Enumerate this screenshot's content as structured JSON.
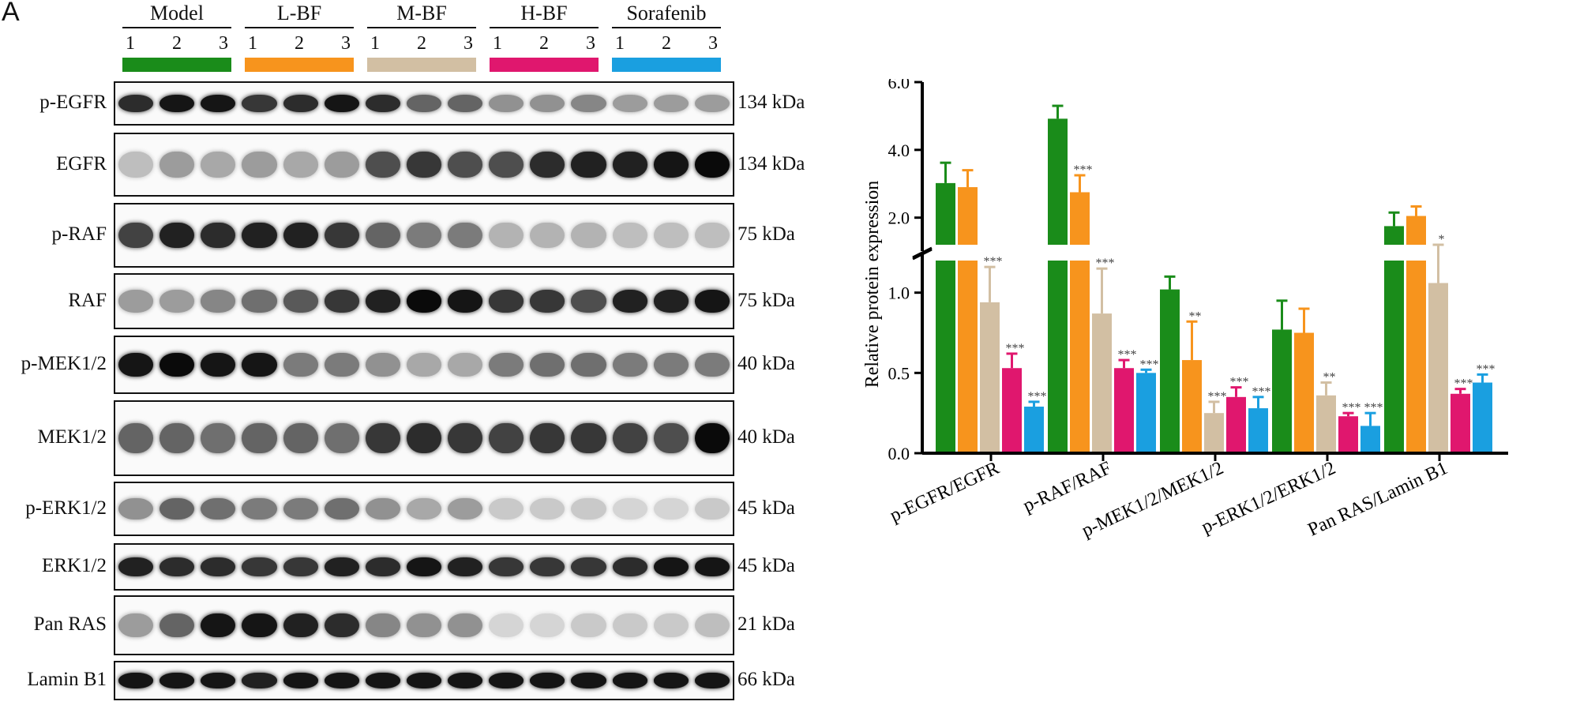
{
  "panel_label": "A",
  "groups": [
    {
      "name": "Model",
      "lanes": [
        "1",
        "2",
        "3"
      ],
      "color": "#1a8c1a"
    },
    {
      "name": "L-BF",
      "lanes": [
        "1",
        "2",
        "3"
      ],
      "color": "#f7941d"
    },
    {
      "name": "M-BF",
      "lanes": [
        "1",
        "2",
        "3"
      ],
      "color": "#d2bfa3"
    },
    {
      "name": "H-BF",
      "lanes": [
        "1",
        "2",
        "3"
      ],
      "color": "#e0176e"
    },
    {
      "name": "Sorafenib",
      "lanes": [
        "1",
        "2",
        "3"
      ],
      "color": "#1a9fe0"
    }
  ],
  "blots": [
    {
      "name": "p-EGFR",
      "kda": "134 kDa",
      "intensity": [
        0.85,
        0.95,
        0.95,
        0.8,
        0.85,
        0.95,
        0.85,
        0.6,
        0.6,
        0.4,
        0.4,
        0.45,
        0.35,
        0.35,
        0.35
      ]
    },
    {
      "name": "EGFR",
      "kda": "134 kDa",
      "intensity": [
        0.2,
        0.35,
        0.3,
        0.35,
        0.3,
        0.35,
        0.7,
        0.8,
        0.7,
        0.7,
        0.85,
        0.9,
        0.9,
        0.95,
        1.0
      ]
    },
    {
      "name": "p-RAF",
      "kda": "75 kDa",
      "intensity": [
        0.75,
        0.9,
        0.85,
        0.9,
        0.9,
        0.8,
        0.6,
        0.5,
        0.5,
        0.25,
        0.25,
        0.25,
        0.2,
        0.2,
        0.2
      ]
    },
    {
      "name": "RAF",
      "kda": "75 kDa",
      "intensity": [
        0.35,
        0.35,
        0.45,
        0.55,
        0.65,
        0.8,
        0.9,
        1.0,
        0.95,
        0.8,
        0.8,
        0.7,
        0.9,
        0.9,
        0.95
      ]
    },
    {
      "name": "p-MEK1/2",
      "kda": "40 kDa",
      "intensity": [
        0.95,
        1.0,
        0.95,
        0.95,
        0.5,
        0.5,
        0.4,
        0.3,
        0.3,
        0.5,
        0.55,
        0.55,
        0.5,
        0.5,
        0.5
      ]
    },
    {
      "name": "MEK1/2",
      "kda": "40 kDa",
      "intensity": [
        0.6,
        0.6,
        0.55,
        0.6,
        0.6,
        0.55,
        0.8,
        0.85,
        0.8,
        0.75,
        0.8,
        0.8,
        0.75,
        0.7,
        1.0
      ]
    },
    {
      "name": "p-ERK1/2",
      "kda": "45 kDa",
      "intensity": [
        0.4,
        0.6,
        0.55,
        0.5,
        0.5,
        0.55,
        0.4,
        0.3,
        0.35,
        0.15,
        0.15,
        0.15,
        0.1,
        0.1,
        0.15
      ]
    },
    {
      "name": "ERK1/2",
      "kda": "45 kDa",
      "intensity": [
        0.9,
        0.85,
        0.85,
        0.8,
        0.8,
        0.9,
        0.85,
        0.95,
        0.9,
        0.8,
        0.8,
        0.8,
        0.85,
        0.95,
        0.95
      ]
    },
    {
      "name": "Pan RAS",
      "kda": "21 kDa",
      "intensity": [
        0.35,
        0.6,
        0.95,
        0.95,
        0.9,
        0.85,
        0.45,
        0.4,
        0.4,
        0.1,
        0.1,
        0.15,
        0.15,
        0.15,
        0.2
      ]
    },
    {
      "name": "Lamin B1",
      "kda": "66 kDa",
      "intensity": [
        0.95,
        0.95,
        0.95,
        0.9,
        0.95,
        0.95,
        0.95,
        0.95,
        0.95,
        0.95,
        0.95,
        0.95,
        0.95,
        0.95,
        0.95
      ]
    }
  ],
  "chart_data": {
    "type": "bar",
    "ylabel": "Relative protein expression",
    "categories": [
      "p-EGFR/EGFR",
      "p-RAF/RAF",
      "p-MEK1/2/MEK1/2",
      "p-ERK1/2/ERK1/2",
      "Pan RAS/Lamin B1"
    ],
    "series_colors": [
      "#1a8c1a",
      "#f7941d",
      "#d2bfa3",
      "#e0176e",
      "#1a9fe0"
    ],
    "axis_break": {
      "lower": [
        0,
        1.2
      ],
      "upper": [
        1.2,
        6.0
      ]
    },
    "lower_ticks": [
      "0.0",
      "0.5",
      "1.0"
    ],
    "upper_ticks": [
      "2.0",
      "4.0",
      "6.0"
    ],
    "series": [
      {
        "values": [
          3.02,
          4.92,
          1.02,
          0.77,
          1.75
        ],
        "errors": [
          0.6,
          0.38,
          0.08,
          0.18,
          0.4
        ],
        "sig": [
          "",
          "",
          "",
          "",
          ""
        ]
      },
      {
        "values": [
          2.9,
          2.75,
          0.58,
          0.75,
          2.05
        ],
        "errors": [
          0.5,
          0.5,
          0.24,
          0.15,
          0.28
        ],
        "sig": [
          "",
          "***",
          "**",
          "",
          ""
        ]
      },
      {
        "values": [
          0.94,
          0.87,
          0.25,
          0.36,
          1.06
        ],
        "errors": [
          0.22,
          0.28,
          0.07,
          0.08,
          0.14
        ],
        "sig": [
          "***",
          "***",
          "***",
          "**",
          "*"
        ]
      },
      {
        "values": [
          0.53,
          0.53,
          0.35,
          0.23,
          0.37
        ],
        "errors": [
          0.09,
          0.05,
          0.06,
          0.02,
          0.03
        ],
        "sig": [
          "***",
          "***",
          "***",
          "***",
          "***"
        ]
      },
      {
        "values": [
          0.29,
          0.5,
          0.28,
          0.17,
          0.44
        ],
        "errors": [
          0.03,
          0.02,
          0.07,
          0.08,
          0.05
        ],
        "sig": [
          "***",
          "***",
          "***",
          "***",
          "***"
        ]
      }
    ]
  }
}
